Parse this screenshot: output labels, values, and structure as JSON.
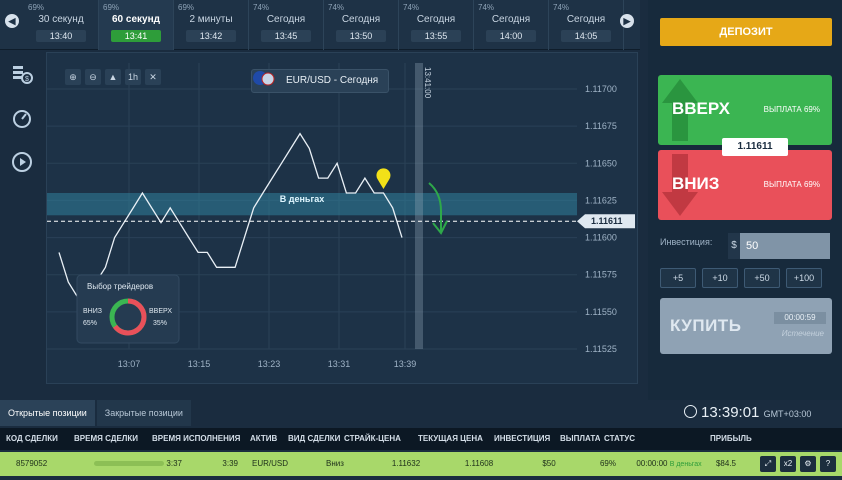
{
  "time_slots": [
    {
      "pct": "69%",
      "label": "30 секунд",
      "time": "13:40",
      "active": false
    },
    {
      "pct": "69%",
      "label": "60 секунд",
      "time": "13:41",
      "active": true
    },
    {
      "pct": "69%",
      "label": "2 минуты",
      "time": "13:42",
      "active": false
    },
    {
      "pct": "74%",
      "label": "Сегодня",
      "time": "13:45",
      "active": false
    },
    {
      "pct": "74%",
      "label": "Сегодня",
      "time": "13:50",
      "active": false
    },
    {
      "pct": "74%",
      "label": "Сегодня",
      "time": "13:55",
      "active": false
    },
    {
      "pct": "74%",
      "label": "Сегодня",
      "time": "14:00",
      "active": false
    },
    {
      "pct": "74%",
      "label": "Сегодня",
      "time": "14:05",
      "active": false
    }
  ],
  "chart": {
    "asset": "EUR/USD - Сегодня",
    "tools": [
      "⊕",
      "⊖",
      "▲",
      "1h",
      "✕"
    ],
    "expiry_marker": "13:41:00",
    "zone_label": "В деньгах",
    "current_price_label": "1.11611",
    "y_ticks": [
      "1.11700",
      "1.11675",
      "1.11650",
      "1.11625",
      "1.11600",
      "1.11575",
      "1.11550",
      "1.11525"
    ],
    "x_ticks": [
      "13:07",
      "13:15",
      "13:23",
      "13:31",
      "13:39"
    ],
    "traders": {
      "title": "Выбор трейдеров",
      "down_label": "ВНИЗ",
      "down_pct": "65%",
      "up_label": "ВВЕРХ",
      "up_pct": "35%",
      "down_value": 65,
      "up_value": 35
    }
  },
  "chart_data": {
    "type": "line",
    "x": [
      "13:03",
      "13:04",
      "13:05",
      "13:06",
      "13:07",
      "13:08",
      "13:09",
      "13:10",
      "13:11",
      "13:12",
      "13:13",
      "13:14",
      "13:15",
      "13:16",
      "13:17",
      "13:18",
      "13:19",
      "13:20",
      "13:21",
      "13:22",
      "13:23",
      "13:24",
      "13:25",
      "13:26",
      "13:27",
      "13:28",
      "13:29",
      "13:30",
      "13:31",
      "13:32",
      "13:33",
      "13:34",
      "13:35",
      "13:36",
      "13:37",
      "13:38",
      "13:39",
      "13:40"
    ],
    "y": [
      1.1159,
      1.1157,
      1.1156,
      1.1156,
      1.1157,
      1.1158,
      1.116,
      1.1161,
      1.1162,
      1.1163,
      1.1162,
      1.1161,
      1.1162,
      1.1161,
      1.116,
      1.1159,
      1.1159,
      1.1158,
      1.1158,
      1.1158,
      1.116,
      1.1162,
      1.1163,
      1.1164,
      1.1165,
      1.1166,
      1.1167,
      1.1166,
      1.1164,
      1.1164,
      1.1165,
      1.1163,
      1.1163,
      1.1164,
      1.1163,
      1.1163,
      1.1162,
      1.116
    ],
    "ylim": [
      1.11525,
      1.117
    ],
    "title": "EUR/USD - Сегодня"
  },
  "right_panel": {
    "deposit": "ДЕПОЗИТ",
    "up_label": "ВВЕРХ",
    "up_payout": "ВЫПЛАТА 69%",
    "down_label": "ВНИЗ",
    "down_payout": "ВЫПЛАТА 69%",
    "rate": "1.11611",
    "investment_label": "Инвестиция:",
    "currency": "$",
    "investment_value": "50",
    "increments": [
      "+5",
      "+10",
      "+50",
      "+100"
    ],
    "buy_label": "КУПИТЬ",
    "timer": "00:00:59",
    "expiry_text": "Истечение"
  },
  "bottom": {
    "tabs": [
      "Открытые позиции",
      "Закрытые позиции"
    ],
    "clock_time": "13:39:01",
    "clock_tz": "GMT+03:00",
    "columns": [
      "КОД СДЕЛКИ",
      "ВРЕМЯ СДЕЛКИ",
      "ВРЕМЯ ИСПОЛНЕНИЯ",
      "АКТИВ",
      "ВИД СДЕЛКИ",
      "СТРАЙК-ЦЕНА",
      "ТЕКУЩАЯ ЦЕНА",
      "ИНВЕСТИЦИЯ",
      "ВЫПЛАТА",
      "СТАТУС",
      "ПРИБЫЛЬ"
    ],
    "row": {
      "code": "8579052",
      "time": "3:37",
      "exec": "3:39",
      "asset": "EUR/USD",
      "type": "Вниз",
      "strike": "1.11632",
      "current": "1.11608",
      "investment": "$50",
      "payout": "69%",
      "status_time": "00:00:00",
      "status": "В деньгах",
      "profit": "$84.5"
    },
    "row_icons": [
      "⤢",
      "x2",
      "⚙",
      "?"
    ]
  },
  "colors": {
    "up": "#3bb552",
    "down": "#e9505a",
    "deposit": "#e6a817",
    "row": "#a8d86a"
  }
}
